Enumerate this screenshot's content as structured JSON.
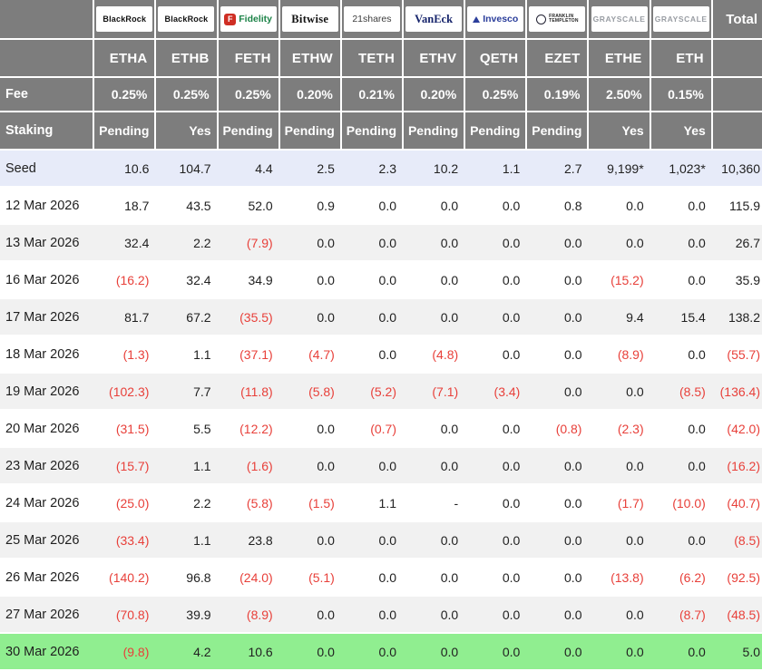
{
  "ui": {
    "total_label": "Total",
    "fee_label": "Fee",
    "staking_label": "Staking"
  },
  "colors": {
    "header_bg": "#7d7d7d",
    "header_text": "#ffffff",
    "seed_row_bg": "#e7ebf9",
    "alt_row_bg": "#f1f1f1",
    "highlight_row_bg": "#90ee90",
    "negative_value": "#e8403a",
    "positive_value": "#212121",
    "fidelity_red": "#cf2e24",
    "fidelity_green": "#1d8348",
    "vaneck_navy": "#16246b",
    "invesco_blue": "#2b3e9b",
    "grayscale_gray": "#999da3"
  },
  "chart_data": {
    "type": "table",
    "total_column_header": "Total",
    "funds": [
      {
        "provider": "BlackRock",
        "ticker": "ETHA",
        "fee": "0.25%",
        "staking": "Pending",
        "logo": {
          "style": "blackrock",
          "text": "BlackRock"
        }
      },
      {
        "provider": "BlackRock",
        "ticker": "ETHB",
        "fee": "0.25%",
        "staking": "Yes",
        "logo": {
          "style": "blackrock",
          "text": "BlackRock"
        }
      },
      {
        "provider": "Fidelity",
        "ticker": "FETH",
        "fee": "0.25%",
        "staking": "Pending",
        "logo": {
          "style": "fidelity",
          "icon_text": "F",
          "text": "Fidelity"
        }
      },
      {
        "provider": "Bitwise",
        "ticker": "ETHW",
        "fee": "0.20%",
        "staking": "Pending",
        "logo": {
          "style": "bitwise",
          "text": "Bitwise"
        }
      },
      {
        "provider": "21shares",
        "ticker": "TETH",
        "fee": "0.21%",
        "staking": "Pending",
        "logo": {
          "style": "shares21",
          "text": "21shares"
        }
      },
      {
        "provider": "VanEck",
        "ticker": "ETHV",
        "fee": "0.20%",
        "staking": "Pending",
        "logo": {
          "style": "vaneck",
          "text": "VanEck"
        }
      },
      {
        "provider": "Invesco",
        "ticker": "QETH",
        "fee": "0.25%",
        "staking": "Pending",
        "logo": {
          "style": "invesco",
          "text": "Invesco"
        }
      },
      {
        "provider": "Franklin Templeton",
        "ticker": "EZET",
        "fee": "0.19%",
        "staking": "Pending",
        "logo": {
          "style": "franklin",
          "lines": [
            "FRANKLIN",
            "TEMPLETON"
          ]
        }
      },
      {
        "provider": "Grayscale",
        "ticker": "ETHE",
        "fee": "2.50%",
        "staking": "Yes",
        "logo": {
          "style": "grayscale",
          "text": "GRAYSCALE"
        }
      },
      {
        "provider": "Grayscale",
        "ticker": "ETH",
        "fee": "0.15%",
        "staking": "Yes",
        "logo": {
          "style": "grayscale",
          "text": "GRAYSCALE"
        }
      }
    ],
    "rows": [
      {
        "label": "Seed",
        "kind": "seed",
        "values": [
          "10.6",
          "104.7",
          "4.4",
          "2.5",
          "2.3",
          "10.2",
          "1.1",
          "2.7",
          "9,199*",
          "1,023*",
          "10,360"
        ]
      },
      {
        "label": "12 Mar 2026",
        "values": [
          "18.7",
          "43.5",
          "52.0",
          "0.9",
          "0.0",
          "0.0",
          "0.0",
          "0.8",
          "0.0",
          "0.0",
          "115.9"
        ]
      },
      {
        "label": "13 Mar 2026",
        "values": [
          "32.4",
          "2.2",
          "(7.9)",
          "0.0",
          "0.0",
          "0.0",
          "0.0",
          "0.0",
          "0.0",
          "0.0",
          "26.7"
        ]
      },
      {
        "label": "16 Mar 2026",
        "values": [
          "(16.2)",
          "32.4",
          "34.9",
          "0.0",
          "0.0",
          "0.0",
          "0.0",
          "0.0",
          "(15.2)",
          "0.0",
          "35.9"
        ]
      },
      {
        "label": "17 Mar 2026",
        "values": [
          "81.7",
          "67.2",
          "(35.5)",
          "0.0",
          "0.0",
          "0.0",
          "0.0",
          "0.0",
          "9.4",
          "15.4",
          "138.2"
        ]
      },
      {
        "label": "18 Mar 2026",
        "values": [
          "(1.3)",
          "1.1",
          "(37.1)",
          "(4.7)",
          "0.0",
          "(4.8)",
          "0.0",
          "0.0",
          "(8.9)",
          "0.0",
          "(55.7)"
        ]
      },
      {
        "label": "19 Mar 2026",
        "values": [
          "(102.3)",
          "7.7",
          "(11.8)",
          "(5.8)",
          "(5.2)",
          "(7.1)",
          "(3.4)",
          "0.0",
          "0.0",
          "(8.5)",
          "(136.4)"
        ]
      },
      {
        "label": "20 Mar 2026",
        "values": [
          "(31.5)",
          "5.5",
          "(12.2)",
          "0.0",
          "(0.7)",
          "0.0",
          "0.0",
          "(0.8)",
          "(2.3)",
          "0.0",
          "(42.0)"
        ]
      },
      {
        "label": "23 Mar 2026",
        "values": [
          "(15.7)",
          "1.1",
          "(1.6)",
          "0.0",
          "0.0",
          "0.0",
          "0.0",
          "0.0",
          "0.0",
          "0.0",
          "(16.2)"
        ]
      },
      {
        "label": "24 Mar 2026",
        "values": [
          "(25.0)",
          "2.2",
          "(5.8)",
          "(1.5)",
          "1.1",
          "-",
          "0.0",
          "0.0",
          "(1.7)",
          "(10.0)",
          "(40.7)"
        ]
      },
      {
        "label": "25 Mar 2026",
        "values": [
          "(33.4)",
          "1.1",
          "23.8",
          "0.0",
          "0.0",
          "0.0",
          "0.0",
          "0.0",
          "0.0",
          "0.0",
          "(8.5)"
        ]
      },
      {
        "label": "26 Mar 2026",
        "values": [
          "(140.2)",
          "96.8",
          "(24.0)",
          "(5.1)",
          "0.0",
          "0.0",
          "0.0",
          "0.0",
          "(13.8)",
          "(6.2)",
          "(92.5)"
        ]
      },
      {
        "label": "27 Mar 2026",
        "values": [
          "(70.8)",
          "39.9",
          "(8.9)",
          "0.0",
          "0.0",
          "0.0",
          "0.0",
          "0.0",
          "0.0",
          "(8.7)",
          "(48.5)"
        ]
      },
      {
        "label": "30 Mar 2026",
        "kind": "highlight",
        "values": [
          "(9.8)",
          "4.2",
          "10.6",
          "0.0",
          "0.0",
          "0.0",
          "0.0",
          "0.0",
          "0.0",
          "0.0",
          "5.0"
        ]
      }
    ]
  }
}
